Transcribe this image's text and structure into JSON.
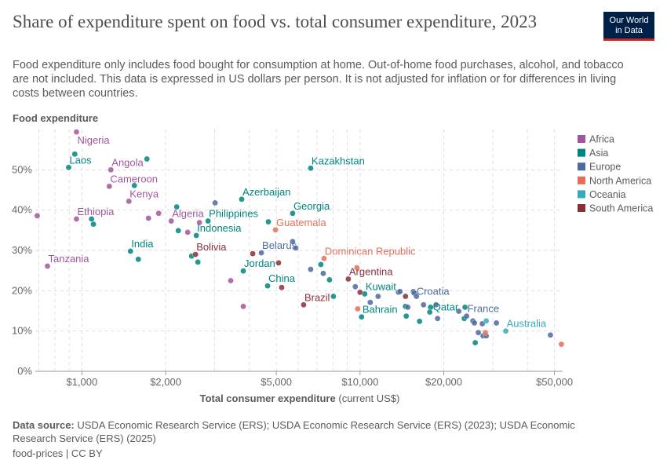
{
  "title": "Share of expenditure spent on food vs. total consumer expenditure, 2023",
  "subtitle": "Food expenditure only includes food bought for consumption at home. Out-of-home food purchases, alcohol, and tobacco are not included. This data is expressed in US dollars per person. It is not adjusted for inflation or for differences in living costs between countries.",
  "logo": {
    "line1": "Our World",
    "line2": "in Data"
  },
  "footer": {
    "source_label": "Data source:",
    "source_text": "USDA Economic Research Service (ERS); USDA Economic Research Service (ERS) (2023); USDA Economic Research Service (ERS) (2025)",
    "license": "food-prices | CC BY"
  },
  "chart_data": {
    "type": "scatter",
    "title": "Share of expenditure spent on food vs. total consumer expenditure, 2023",
    "xlabel": "Total consumer expenditure",
    "xlabel_unit": "(current US$)",
    "ylabel": "Food expenditure",
    "xscale": "log",
    "xlim": [
      680,
      53500
    ],
    "ylim": [
      0,
      60
    ],
    "x_ticks": [
      {
        "value": 1000,
        "label": "$1,000"
      },
      {
        "value": 2000,
        "label": "$2,000"
      },
      {
        "value": 5000,
        "label": "$5,000"
      },
      {
        "value": 10000,
        "label": "$10,000"
      },
      {
        "value": 20000,
        "label": "$20,000"
      },
      {
        "value": 50000,
        "label": "$50,000"
      }
    ],
    "y_ticks": [
      {
        "value": 0,
        "label": "0%"
      },
      {
        "value": 10,
        "label": "10%"
      },
      {
        "value": 20,
        "label": "20%"
      },
      {
        "value": 30,
        "label": "30%"
      },
      {
        "value": 40,
        "label": "40%"
      },
      {
        "value": 50,
        "label": "50%"
      }
    ],
    "grid": true,
    "legend_position": "right",
    "series": [
      {
        "name": "Africa",
        "color": "#a2559c",
        "points": [
          {
            "x": 956,
            "y": 59.4,
            "label": "Nigeria"
          },
          {
            "x": 1271,
            "y": 50.0,
            "label": "Angola"
          },
          {
            "x": 1255,
            "y": 45.9,
            "label": "Cameroon"
          },
          {
            "x": 1476,
            "y": 42.2,
            "label": "Kenya"
          },
          {
            "x": 956,
            "y": 37.8,
            "label": "Ethiopia"
          },
          {
            "x": 752,
            "y": 26.1,
            "label": "Tanzania"
          },
          {
            "x": 2095,
            "y": 37.3,
            "label": "Algeria"
          },
          {
            "x": 691,
            "y": 38.6
          },
          {
            "x": 1736,
            "y": 38.0
          },
          {
            "x": 1888,
            "y": 39.2
          },
          {
            "x": 2646,
            "y": 36.9
          },
          {
            "x": 2401,
            "y": 34.5
          },
          {
            "x": 3429,
            "y": 22.5
          },
          {
            "x": 3804,
            "y": 16.1
          }
        ]
      },
      {
        "name": "Asia",
        "color": "#00847e",
        "points": [
          {
            "x": 896,
            "y": 50.6,
            "label": "Laos"
          },
          {
            "x": 943,
            "y": 53.9
          },
          {
            "x": 1713,
            "y": 52.7
          },
          {
            "x": 1544,
            "y": 46.1
          },
          {
            "x": 1083,
            "y": 37.8
          },
          {
            "x": 1100,
            "y": 36.5
          },
          {
            "x": 3754,
            "y": 42.7,
            "label": "Azerbaijan"
          },
          {
            "x": 2842,
            "y": 37.3,
            "label": "Philippines"
          },
          {
            "x": 2578,
            "y": 33.7,
            "label": "Indonesia"
          },
          {
            "x": 1495,
            "y": 29.8,
            "label": "India"
          },
          {
            "x": 1595,
            "y": 27.8
          },
          {
            "x": 2192,
            "y": 40.8
          },
          {
            "x": 2221,
            "y": 34.9
          },
          {
            "x": 2480,
            "y": 28.6
          },
          {
            "x": 2612,
            "y": 27.1
          },
          {
            "x": 6646,
            "y": 50.4,
            "label": "Kazakhstan"
          },
          {
            "x": 5724,
            "y": 39.2,
            "label": "Georgia"
          },
          {
            "x": 4682,
            "y": 37.1
          },
          {
            "x": 3804,
            "y": 24.9,
            "label": "Jordan"
          },
          {
            "x": 4652,
            "y": 21.2,
            "label": "China"
          },
          {
            "x": 7231,
            "y": 26.5
          },
          {
            "x": 7766,
            "y": 22.7
          },
          {
            "x": 8022,
            "y": 18.6
          },
          {
            "x": 10397,
            "y": 19.2,
            "label": "Kuwait"
          },
          {
            "x": 10130,
            "y": 13.5,
            "label": "Bahrain"
          },
          {
            "x": 14660,
            "y": 13.7
          },
          {
            "x": 14570,
            "y": 16.1
          },
          {
            "x": 17930,
            "y": 15.9,
            "label": "Qatar"
          },
          {
            "x": 16370,
            "y": 12.4
          },
          {
            "x": 17810,
            "y": 14.7
          },
          {
            "x": 23850,
            "y": 15.9
          },
          {
            "x": 23700,
            "y": 13.1
          },
          {
            "x": 25950,
            "y": 7.1
          }
        ]
      },
      {
        "name": "Europe",
        "color": "#4c6a9c",
        "points": [
          {
            "x": 3012,
            "y": 41.8
          },
          {
            "x": 4417,
            "y": 29.4,
            "label": "Belarus"
          },
          {
            "x": 5724,
            "y": 32.2
          },
          {
            "x": 5875,
            "y": 30.6
          },
          {
            "x": 6646,
            "y": 25.3
          },
          {
            "x": 7374,
            "y": 24.3
          },
          {
            "x": 9618,
            "y": 21.0
          },
          {
            "x": 10880,
            "y": 17.1
          },
          {
            "x": 11610,
            "y": 18.6
          },
          {
            "x": 13740,
            "y": 19.6
          },
          {
            "x": 13920,
            "y": 19.8
          },
          {
            "x": 15540,
            "y": 19.8,
            "label": "Croatia"
          },
          {
            "x": 15650,
            "y": 19.4
          },
          {
            "x": 15950,
            "y": 18.6
          },
          {
            "x": 14850,
            "y": 15.9
          },
          {
            "x": 16910,
            "y": 16.5
          },
          {
            "x": 18760,
            "y": 16.5
          },
          {
            "x": 19000,
            "y": 13.1
          },
          {
            "x": 22640,
            "y": 14.9
          },
          {
            "x": 24160,
            "y": 13.7,
            "label": "France"
          },
          {
            "x": 25450,
            "y": 12.5
          },
          {
            "x": 25780,
            "y": 12.0
          },
          {
            "x": 27510,
            "y": 11.8
          },
          {
            "x": 30920,
            "y": 12.0
          },
          {
            "x": 26630,
            "y": 9.6
          },
          {
            "x": 27690,
            "y": 8.8
          },
          {
            "x": 28420,
            "y": 8.8
          },
          {
            "x": 48360,
            "y": 9.0
          }
        ]
      },
      {
        "name": "North America",
        "color": "#e56e5a",
        "points": [
          {
            "x": 4965,
            "y": 35.1,
            "label": "Guatemala"
          },
          {
            "x": 7421,
            "y": 28.0,
            "label": "Dominican Republic"
          },
          {
            "x": 9744,
            "y": 25.7
          },
          {
            "x": 9807,
            "y": 15.5
          },
          {
            "x": 28230,
            "y": 9.6
          },
          {
            "x": 52950,
            "y": 6.7
          }
        ]
      },
      {
        "name": "Oceania",
        "color": "#38aaba",
        "points": [
          {
            "x": 33420,
            "y": 10.0,
            "label": "Australia"
          },
          {
            "x": 28420,
            "y": 12.5
          }
        ]
      },
      {
        "name": "South America",
        "color": "#883039",
        "points": [
          {
            "x": 2562,
            "y": 29.0,
            "label": "Bolivia"
          },
          {
            "x": 4113,
            "y": 29.2
          },
          {
            "x": 5093,
            "y": 26.9
          },
          {
            "x": 5227,
            "y": 20.8
          },
          {
            "x": 6269,
            "y": 16.5,
            "label": "Brazil"
          },
          {
            "x": 9074,
            "y": 22.9,
            "label": "Argentina"
          },
          {
            "x": 10000,
            "y": 19.6
          },
          {
            "x": 14570,
            "y": 18.6
          }
        ]
      }
    ]
  }
}
